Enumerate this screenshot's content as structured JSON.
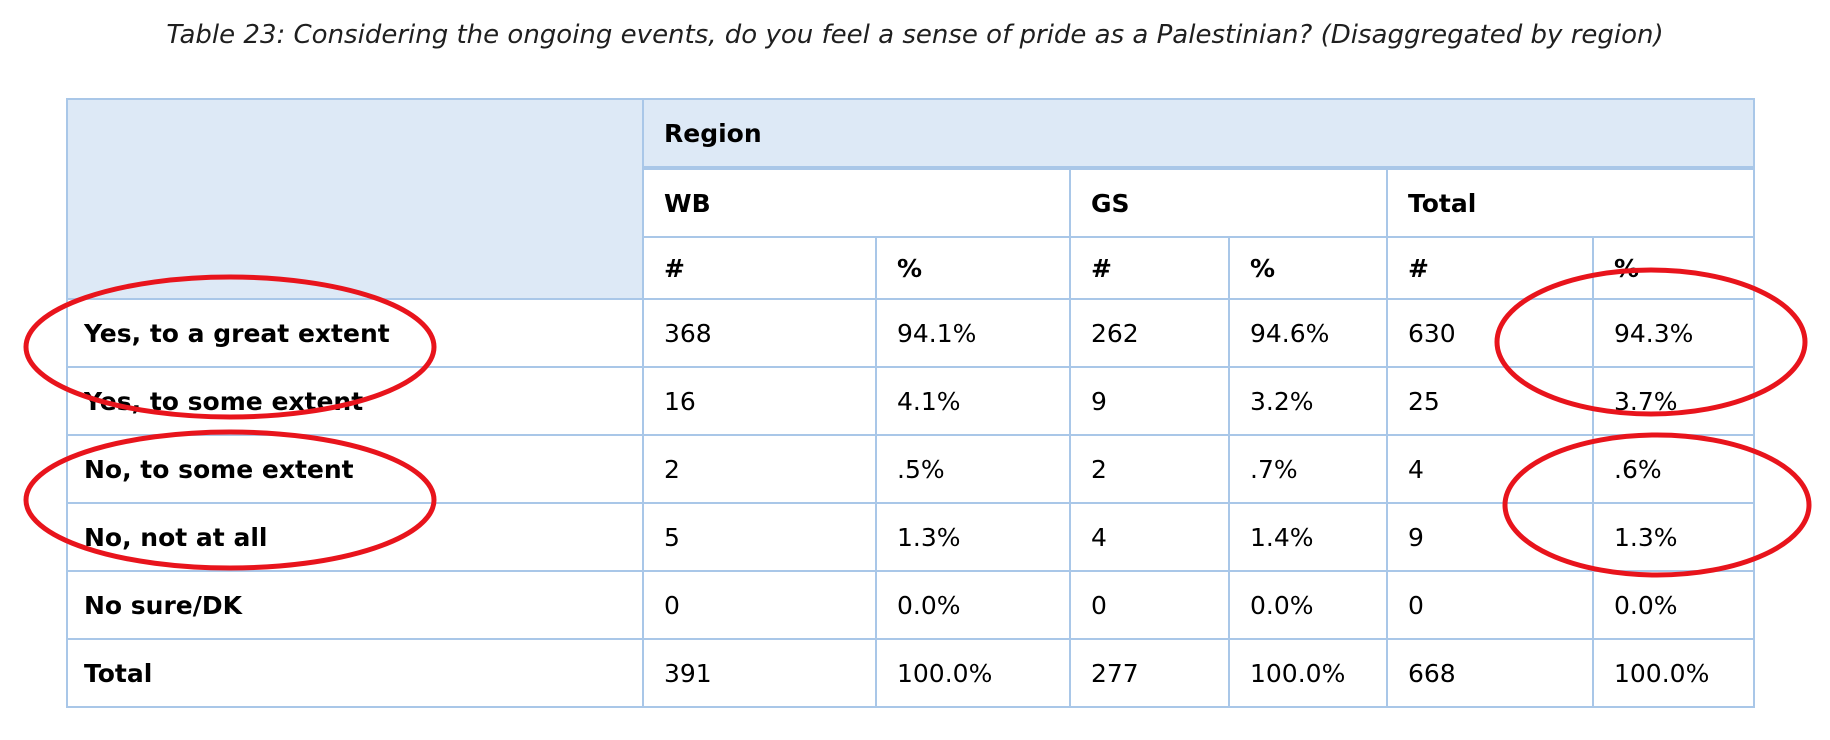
{
  "caption": "Table 23: Considering the ongoing events, do you feel a sense of pride as a Palestinian? (Disaggregated by region)",
  "table": {
    "group_header": "Region",
    "groups": [
      "WB",
      "GS",
      "Total"
    ],
    "subheaders": [
      "#",
      "%",
      "#",
      "%",
      "#",
      "%"
    ],
    "rows": [
      {
        "label": "Yes, to a great extent",
        "cells": [
          "368",
          "94.1%",
          "262",
          "94.6%",
          "630",
          "94.3%"
        ]
      },
      {
        "label": "Yes, to some extent",
        "cells": [
          "16",
          "4.1%",
          "9",
          "3.2%",
          "25",
          "3.7%"
        ]
      },
      {
        "label": "No, to some extent",
        "cells": [
          "2",
          ".5%",
          "2",
          ".7%",
          "4",
          ".6%"
        ]
      },
      {
        "label": "No, not at all",
        "cells": [
          "5",
          "1.3%",
          "4",
          "1.4%",
          "9",
          "1.3%"
        ]
      },
      {
        "label": "No sure/DK",
        "cells": [
          "0",
          "0.0%",
          "0",
          "0.0%",
          "0",
          "0.0%"
        ]
      },
      {
        "label": "Total",
        "cells": [
          "391",
          "100.0%",
          "277",
          "100.0%",
          "668",
          "100.0%"
        ]
      }
    ]
  }
}
